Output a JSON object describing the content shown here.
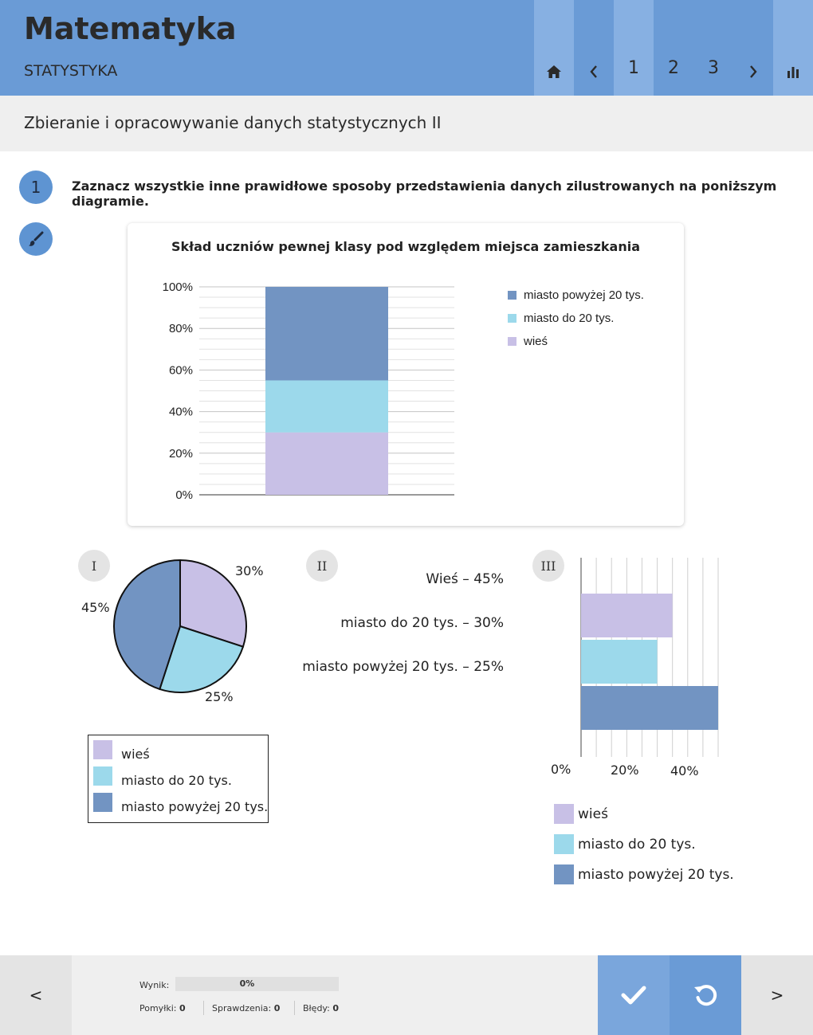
{
  "header": {
    "title": "Matematyka",
    "subtitle": "STATYSTYKA",
    "pages": [
      "1",
      "2",
      "3"
    ],
    "active_page": "1",
    "icons": [
      "home-icon",
      "chevron-left-icon",
      "chevron-right-icon",
      "bar-chart-icon"
    ]
  },
  "lesson": {
    "title": "Zbieranie i opracowywanie danych statystycznych II"
  },
  "question": {
    "number": "1",
    "text": "Zaznacz wszystkie inne prawidłowe sposoby przedstawienia danych zilustrowanych na poniższym diagramie."
  },
  "colors": {
    "accent": "#6a9bd6",
    "wies": "#c8c0e6",
    "miasto_do": "#9cd9eb",
    "miasto_powyzej": "#7294c2"
  },
  "chart_data": {
    "type": "bar",
    "stacked": true,
    "title": "Skład uczniów pewnej klasy pod względem miejsca zamieszkania",
    "categories": [
      ""
    ],
    "series": [
      {
        "name": "wieś",
        "values": [
          30
        ],
        "color": "#c8c0e6"
      },
      {
        "name": "miasto do 20 tys.",
        "values": [
          25
        ],
        "color": "#9cd9eb"
      },
      {
        "name": "miasto powyżej 20 tys.",
        "values": [
          45
        ],
        "color": "#7294c2"
      }
    ],
    "yticks": [
      "0%",
      "20%",
      "40%",
      "60%",
      "80%",
      "100%"
    ],
    "ylim": [
      0,
      100
    ],
    "legend": [
      "miasto powyżej 20 tys.",
      "miasto do 20 tys.",
      "wieś"
    ],
    "legend_position": "right",
    "grid": true
  },
  "options": {
    "one": {
      "label": "I",
      "pie": {
        "slices": [
          {
            "name": "wieś",
            "value": 30,
            "label": "30%"
          },
          {
            "name": "miasto do 20 tys.",
            "value": 25,
            "label": "25%"
          },
          {
            "name": "miasto powyżej 20 tys.",
            "value": 45,
            "label": "45%"
          }
        ]
      },
      "legend": [
        "wieś",
        "miasto do 20 tys.",
        "miasto powyżej 20 tys."
      ]
    },
    "two": {
      "label": "II",
      "lines": [
        "Wieś – 45%",
        "miasto do 20 tys. – 30%",
        "miasto powyżej 20 tys.  – 25%"
      ]
    },
    "three": {
      "label": "III",
      "bars": [
        {
          "name": "wieś",
          "value": 30
        },
        {
          "name": "miasto do 20 tys.",
          "value": 25
        },
        {
          "name": "miasto powyżej 20 tys.",
          "value": 45
        }
      ],
      "xticks": [
        "0%",
        "20%",
        "40%"
      ],
      "xlim": [
        0,
        45
      ],
      "legend": [
        "wieś",
        "miasto do 20 tys.",
        "miasto powyżej 20 tys."
      ]
    }
  },
  "footer": {
    "prev_label": "<",
    "next_label": ">",
    "score_label": "Wynik:",
    "score_value": "0%",
    "score_fraction": 0,
    "mistakes_label": "Pomyłki:",
    "mistakes_value": "0",
    "checks_label": "Sprawdzenia:",
    "checks_value": "0",
    "errors_label": "Błędy:",
    "errors_value": "0"
  }
}
